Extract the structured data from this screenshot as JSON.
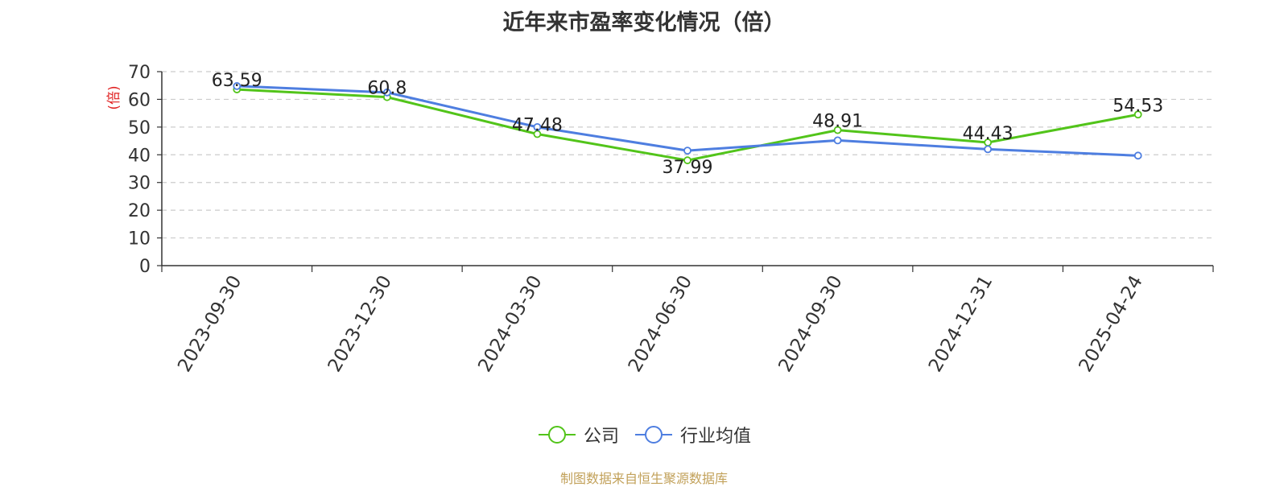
{
  "title": "近年来市盈率变化情况（倍）",
  "footer": "制图数据来自恒生聚源数据库",
  "colors": {
    "company": "#52c41a",
    "industry": "#4e7ee0",
    "ylabel": "#e02020"
  },
  "chart_data": {
    "type": "line",
    "x": [
      "2023-09-30",
      "2023-12-30",
      "2024-03-30",
      "2024-06-30",
      "2024-09-30",
      "2024-12-31",
      "2025-04-24"
    ],
    "ylabel": "(倍)",
    "ylim": [
      0,
      70
    ],
    "yticks": [
      0,
      10,
      20,
      30,
      40,
      50,
      60,
      70
    ],
    "grid": true,
    "legend_position": "bottom",
    "series": [
      {
        "name": "公司",
        "values": [
          63.59,
          60.8,
          47.48,
          37.99,
          48.91,
          44.43,
          54.53
        ],
        "labels": [
          "63.59",
          "60.8",
          "47.48",
          "37.99",
          "48.91",
          "44.43",
          "54.53"
        ]
      },
      {
        "name": "行业均值",
        "values": [
          64.8,
          62.5,
          50.0,
          41.5,
          45.2,
          42.0,
          39.7
        ]
      }
    ]
  }
}
